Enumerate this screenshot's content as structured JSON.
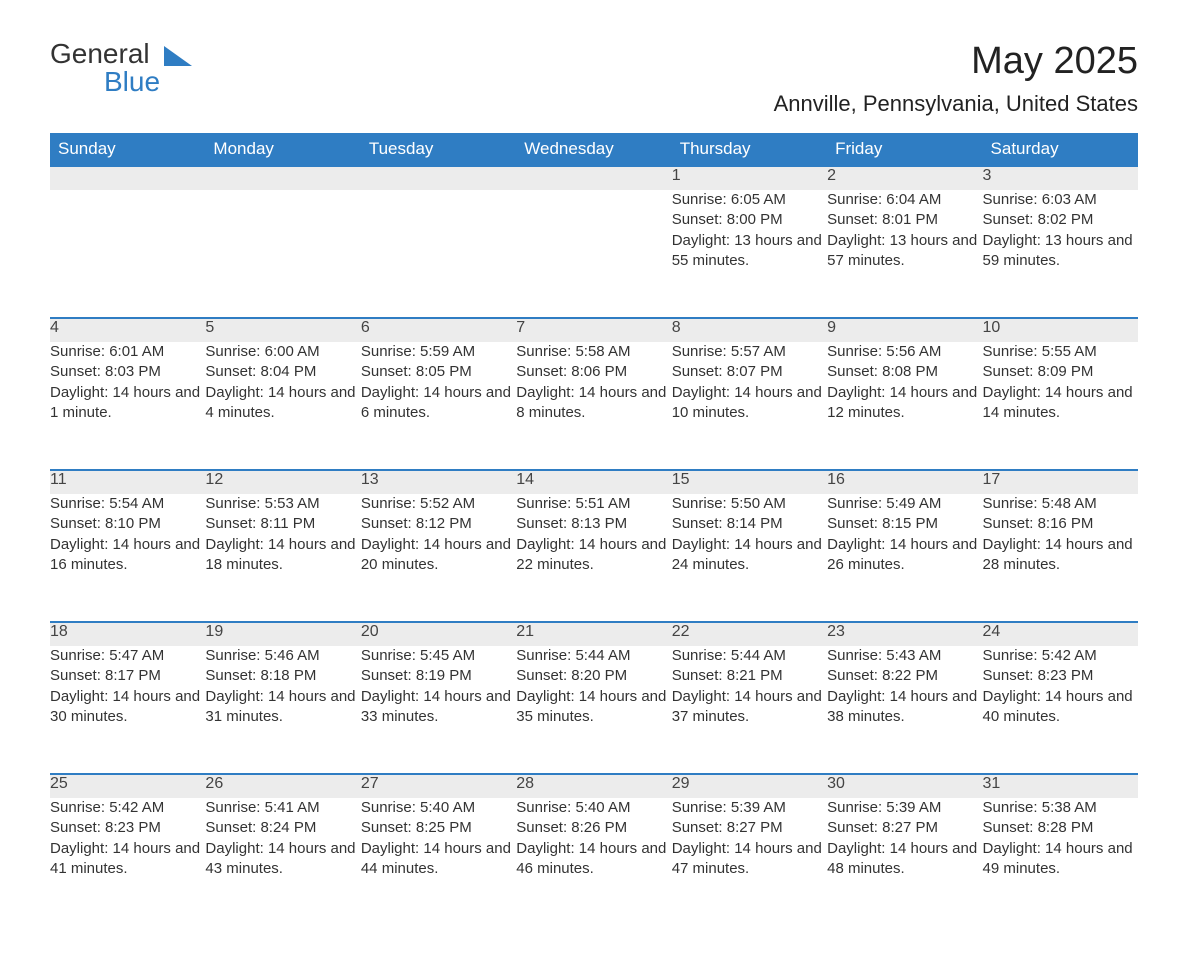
{
  "brand": {
    "line1": "General",
    "line2": "Blue"
  },
  "title": "May 2025",
  "location": "Annville, Pennsylvania, United States",
  "colors": {
    "header_bg": "#2f7dc3",
    "header_fg": "#ffffff",
    "daynum_bg": "#ececec",
    "rule": "#2f7dc3",
    "text": "#333333"
  },
  "weekday_labels": [
    "Sunday",
    "Monday",
    "Tuesday",
    "Wednesday",
    "Thursday",
    "Friday",
    "Saturday"
  ],
  "weeks": [
    [
      null,
      null,
      null,
      null,
      {
        "n": "1",
        "sunrise": "Sunrise: 6:05 AM",
        "sunset": "Sunset: 8:00 PM",
        "daylight": "Daylight: 13 hours and 55 minutes."
      },
      {
        "n": "2",
        "sunrise": "Sunrise: 6:04 AM",
        "sunset": "Sunset: 8:01 PM",
        "daylight": "Daylight: 13 hours and 57 minutes."
      },
      {
        "n": "3",
        "sunrise": "Sunrise: 6:03 AM",
        "sunset": "Sunset: 8:02 PM",
        "daylight": "Daylight: 13 hours and 59 minutes."
      }
    ],
    [
      {
        "n": "4",
        "sunrise": "Sunrise: 6:01 AM",
        "sunset": "Sunset: 8:03 PM",
        "daylight": "Daylight: 14 hours and 1 minute."
      },
      {
        "n": "5",
        "sunrise": "Sunrise: 6:00 AM",
        "sunset": "Sunset: 8:04 PM",
        "daylight": "Daylight: 14 hours and 4 minutes."
      },
      {
        "n": "6",
        "sunrise": "Sunrise: 5:59 AM",
        "sunset": "Sunset: 8:05 PM",
        "daylight": "Daylight: 14 hours and 6 minutes."
      },
      {
        "n": "7",
        "sunrise": "Sunrise: 5:58 AM",
        "sunset": "Sunset: 8:06 PM",
        "daylight": "Daylight: 14 hours and 8 minutes."
      },
      {
        "n": "8",
        "sunrise": "Sunrise: 5:57 AM",
        "sunset": "Sunset: 8:07 PM",
        "daylight": "Daylight: 14 hours and 10 minutes."
      },
      {
        "n": "9",
        "sunrise": "Sunrise: 5:56 AM",
        "sunset": "Sunset: 8:08 PM",
        "daylight": "Daylight: 14 hours and 12 minutes."
      },
      {
        "n": "10",
        "sunrise": "Sunrise: 5:55 AM",
        "sunset": "Sunset: 8:09 PM",
        "daylight": "Daylight: 14 hours and 14 minutes."
      }
    ],
    [
      {
        "n": "11",
        "sunrise": "Sunrise: 5:54 AM",
        "sunset": "Sunset: 8:10 PM",
        "daylight": "Daylight: 14 hours and 16 minutes."
      },
      {
        "n": "12",
        "sunrise": "Sunrise: 5:53 AM",
        "sunset": "Sunset: 8:11 PM",
        "daylight": "Daylight: 14 hours and 18 minutes."
      },
      {
        "n": "13",
        "sunrise": "Sunrise: 5:52 AM",
        "sunset": "Sunset: 8:12 PM",
        "daylight": "Daylight: 14 hours and 20 minutes."
      },
      {
        "n": "14",
        "sunrise": "Sunrise: 5:51 AM",
        "sunset": "Sunset: 8:13 PM",
        "daylight": "Daylight: 14 hours and 22 minutes."
      },
      {
        "n": "15",
        "sunrise": "Sunrise: 5:50 AM",
        "sunset": "Sunset: 8:14 PM",
        "daylight": "Daylight: 14 hours and 24 minutes."
      },
      {
        "n": "16",
        "sunrise": "Sunrise: 5:49 AM",
        "sunset": "Sunset: 8:15 PM",
        "daylight": "Daylight: 14 hours and 26 minutes."
      },
      {
        "n": "17",
        "sunrise": "Sunrise: 5:48 AM",
        "sunset": "Sunset: 8:16 PM",
        "daylight": "Daylight: 14 hours and 28 minutes."
      }
    ],
    [
      {
        "n": "18",
        "sunrise": "Sunrise: 5:47 AM",
        "sunset": "Sunset: 8:17 PM",
        "daylight": "Daylight: 14 hours and 30 minutes."
      },
      {
        "n": "19",
        "sunrise": "Sunrise: 5:46 AM",
        "sunset": "Sunset: 8:18 PM",
        "daylight": "Daylight: 14 hours and 31 minutes."
      },
      {
        "n": "20",
        "sunrise": "Sunrise: 5:45 AM",
        "sunset": "Sunset: 8:19 PM",
        "daylight": "Daylight: 14 hours and 33 minutes."
      },
      {
        "n": "21",
        "sunrise": "Sunrise: 5:44 AM",
        "sunset": "Sunset: 8:20 PM",
        "daylight": "Daylight: 14 hours and 35 minutes."
      },
      {
        "n": "22",
        "sunrise": "Sunrise: 5:44 AM",
        "sunset": "Sunset: 8:21 PM",
        "daylight": "Daylight: 14 hours and 37 minutes."
      },
      {
        "n": "23",
        "sunrise": "Sunrise: 5:43 AM",
        "sunset": "Sunset: 8:22 PM",
        "daylight": "Daylight: 14 hours and 38 minutes."
      },
      {
        "n": "24",
        "sunrise": "Sunrise: 5:42 AM",
        "sunset": "Sunset: 8:23 PM",
        "daylight": "Daylight: 14 hours and 40 minutes."
      }
    ],
    [
      {
        "n": "25",
        "sunrise": "Sunrise: 5:42 AM",
        "sunset": "Sunset: 8:23 PM",
        "daylight": "Daylight: 14 hours and 41 minutes."
      },
      {
        "n": "26",
        "sunrise": "Sunrise: 5:41 AM",
        "sunset": "Sunset: 8:24 PM",
        "daylight": "Daylight: 14 hours and 43 minutes."
      },
      {
        "n": "27",
        "sunrise": "Sunrise: 5:40 AM",
        "sunset": "Sunset: 8:25 PM",
        "daylight": "Daylight: 14 hours and 44 minutes."
      },
      {
        "n": "28",
        "sunrise": "Sunrise: 5:40 AM",
        "sunset": "Sunset: 8:26 PM",
        "daylight": "Daylight: 14 hours and 46 minutes."
      },
      {
        "n": "29",
        "sunrise": "Sunrise: 5:39 AM",
        "sunset": "Sunset: 8:27 PM",
        "daylight": "Daylight: 14 hours and 47 minutes."
      },
      {
        "n": "30",
        "sunrise": "Sunrise: 5:39 AM",
        "sunset": "Sunset: 8:27 PM",
        "daylight": "Daylight: 14 hours and 48 minutes."
      },
      {
        "n": "31",
        "sunrise": "Sunrise: 5:38 AM",
        "sunset": "Sunset: 8:28 PM",
        "daylight": "Daylight: 14 hours and 49 minutes."
      }
    ]
  ]
}
